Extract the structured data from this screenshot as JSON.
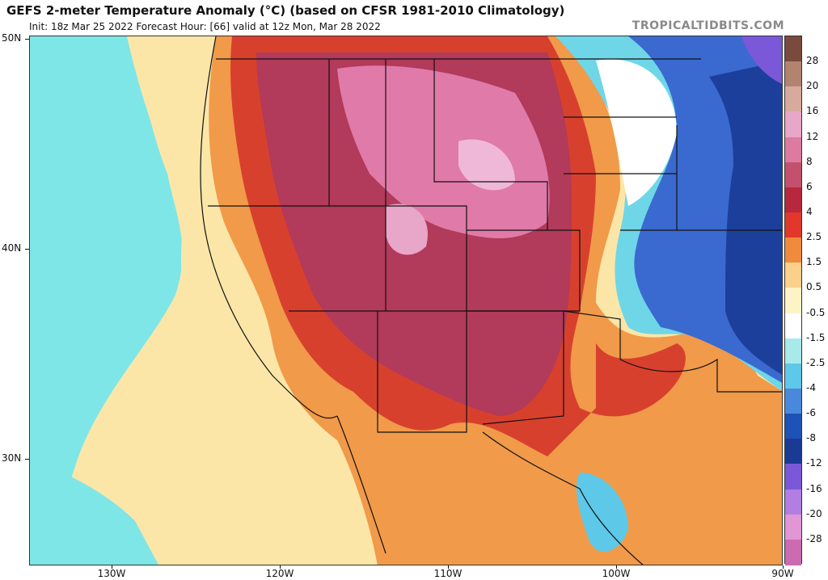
{
  "header": {
    "title": "GEFS 2-meter Temperature Anomaly (°C) (based on CFSR 1981-2010 Climatology)",
    "subtitle": "Init: 18z Mar 25 2022   Forecast Hour: [66]   valid at 12z Mon, Mar 28 2022",
    "brand": "TROPICALTIDBITS.COM"
  },
  "axes": {
    "lat_labels": [
      "50N",
      "40N",
      "30N"
    ],
    "lon_labels": [
      "130W",
      "120W",
      "110W",
      "100W",
      "90W"
    ]
  },
  "colorbar": {
    "labels": [
      "28",
      "20",
      "16",
      "12",
      "8",
      "6",
      "4",
      "2.5",
      "1.5",
      "0.5",
      "-0.5",
      "-1.5",
      "-2.5",
      "-4",
      "-6",
      "-8",
      "-12",
      "-16",
      "-20",
      "-28"
    ],
    "colors": [
      "#7a4a3c",
      "#b28470",
      "#d6aa9c",
      "#e8a6c8",
      "#dc7aa0",
      "#c2506e",
      "#b8283c",
      "#e2382c",
      "#f08a3c",
      "#fad08a",
      "#fdf3c6",
      "#ffffff",
      "#a8eaea",
      "#5ec8e8",
      "#4a88dc",
      "#1e52b6",
      "#1a3a94",
      "#7a58d8",
      "#b27ee2",
      "#e296d6",
      "#cc6ab2"
    ]
  },
  "colors": {
    "strong_warm": "#b23a5a",
    "warm": "#d8402e",
    "mild_warm": "#f09a4a",
    "neutral": "#fbe6a8",
    "cool": "#6fd6e8",
    "cold": "#3a6ad0",
    "very_cold": "#1c3f9c",
    "ocean_cool": "#7fe6e8",
    "pink_anomaly": "#e07aa8"
  }
}
